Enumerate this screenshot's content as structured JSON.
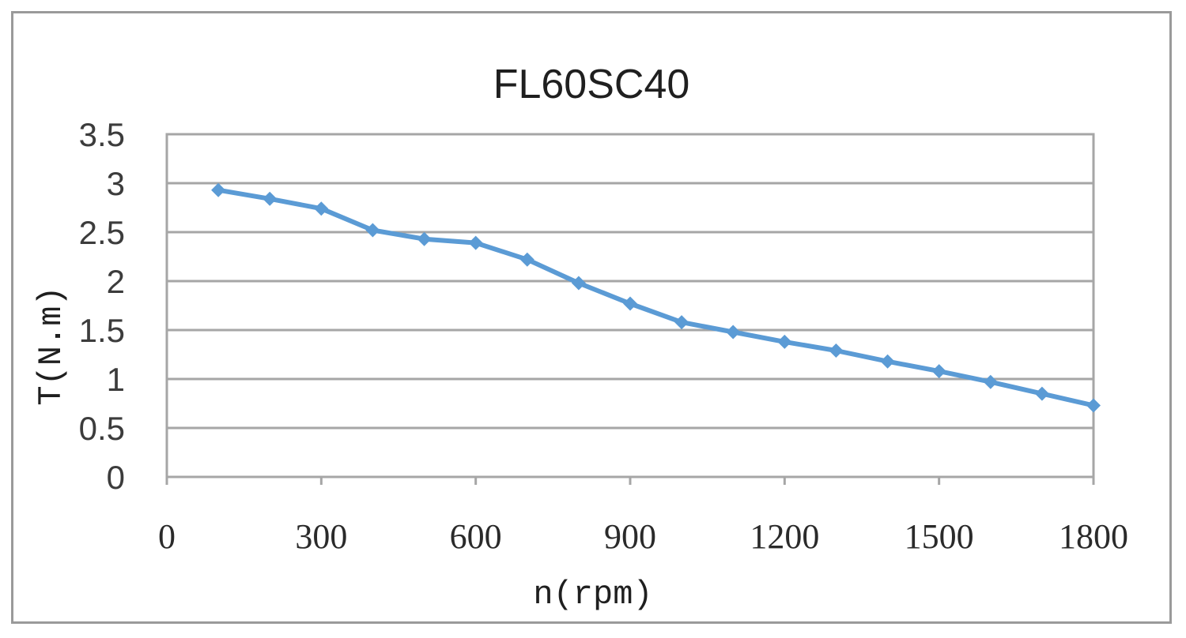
{
  "chart_data": {
    "type": "line",
    "title": "FL60SC40",
    "xlabel": "n(rpm)",
    "ylabel": "T(N.m)",
    "xlim": [
      0,
      1800
    ],
    "ylim": [
      0,
      3.5
    ],
    "x_ticks": [
      "0",
      "300",
      "600",
      "900",
      "1200",
      "1500",
      "1800"
    ],
    "x_tick_values": [
      0,
      300,
      600,
      900,
      1200,
      1500,
      1800
    ],
    "y_ticks": [
      "0",
      "0.5",
      "1",
      "1.5",
      "2",
      "2.5",
      "3",
      "3.5"
    ],
    "y_tick_values": [
      0,
      0.5,
      1,
      1.5,
      2,
      2.5,
      3,
      3.5
    ],
    "grid": "horizontal",
    "legend": "none",
    "series": [
      {
        "color": "#5b9bd5",
        "marker": "diamond",
        "x": [
          100,
          200,
          300,
          400,
          500,
          600,
          700,
          800,
          900,
          1000,
          1100,
          1200,
          1300,
          1400,
          1500,
          1600,
          1700,
          1800
        ],
        "y": [
          2.93,
          2.84,
          2.74,
          2.52,
          2.43,
          2.39,
          2.22,
          1.98,
          1.77,
          1.58,
          1.48,
          1.38,
          1.29,
          1.18,
          1.08,
          0.97,
          0.85,
          0.73
        ]
      }
    ]
  }
}
